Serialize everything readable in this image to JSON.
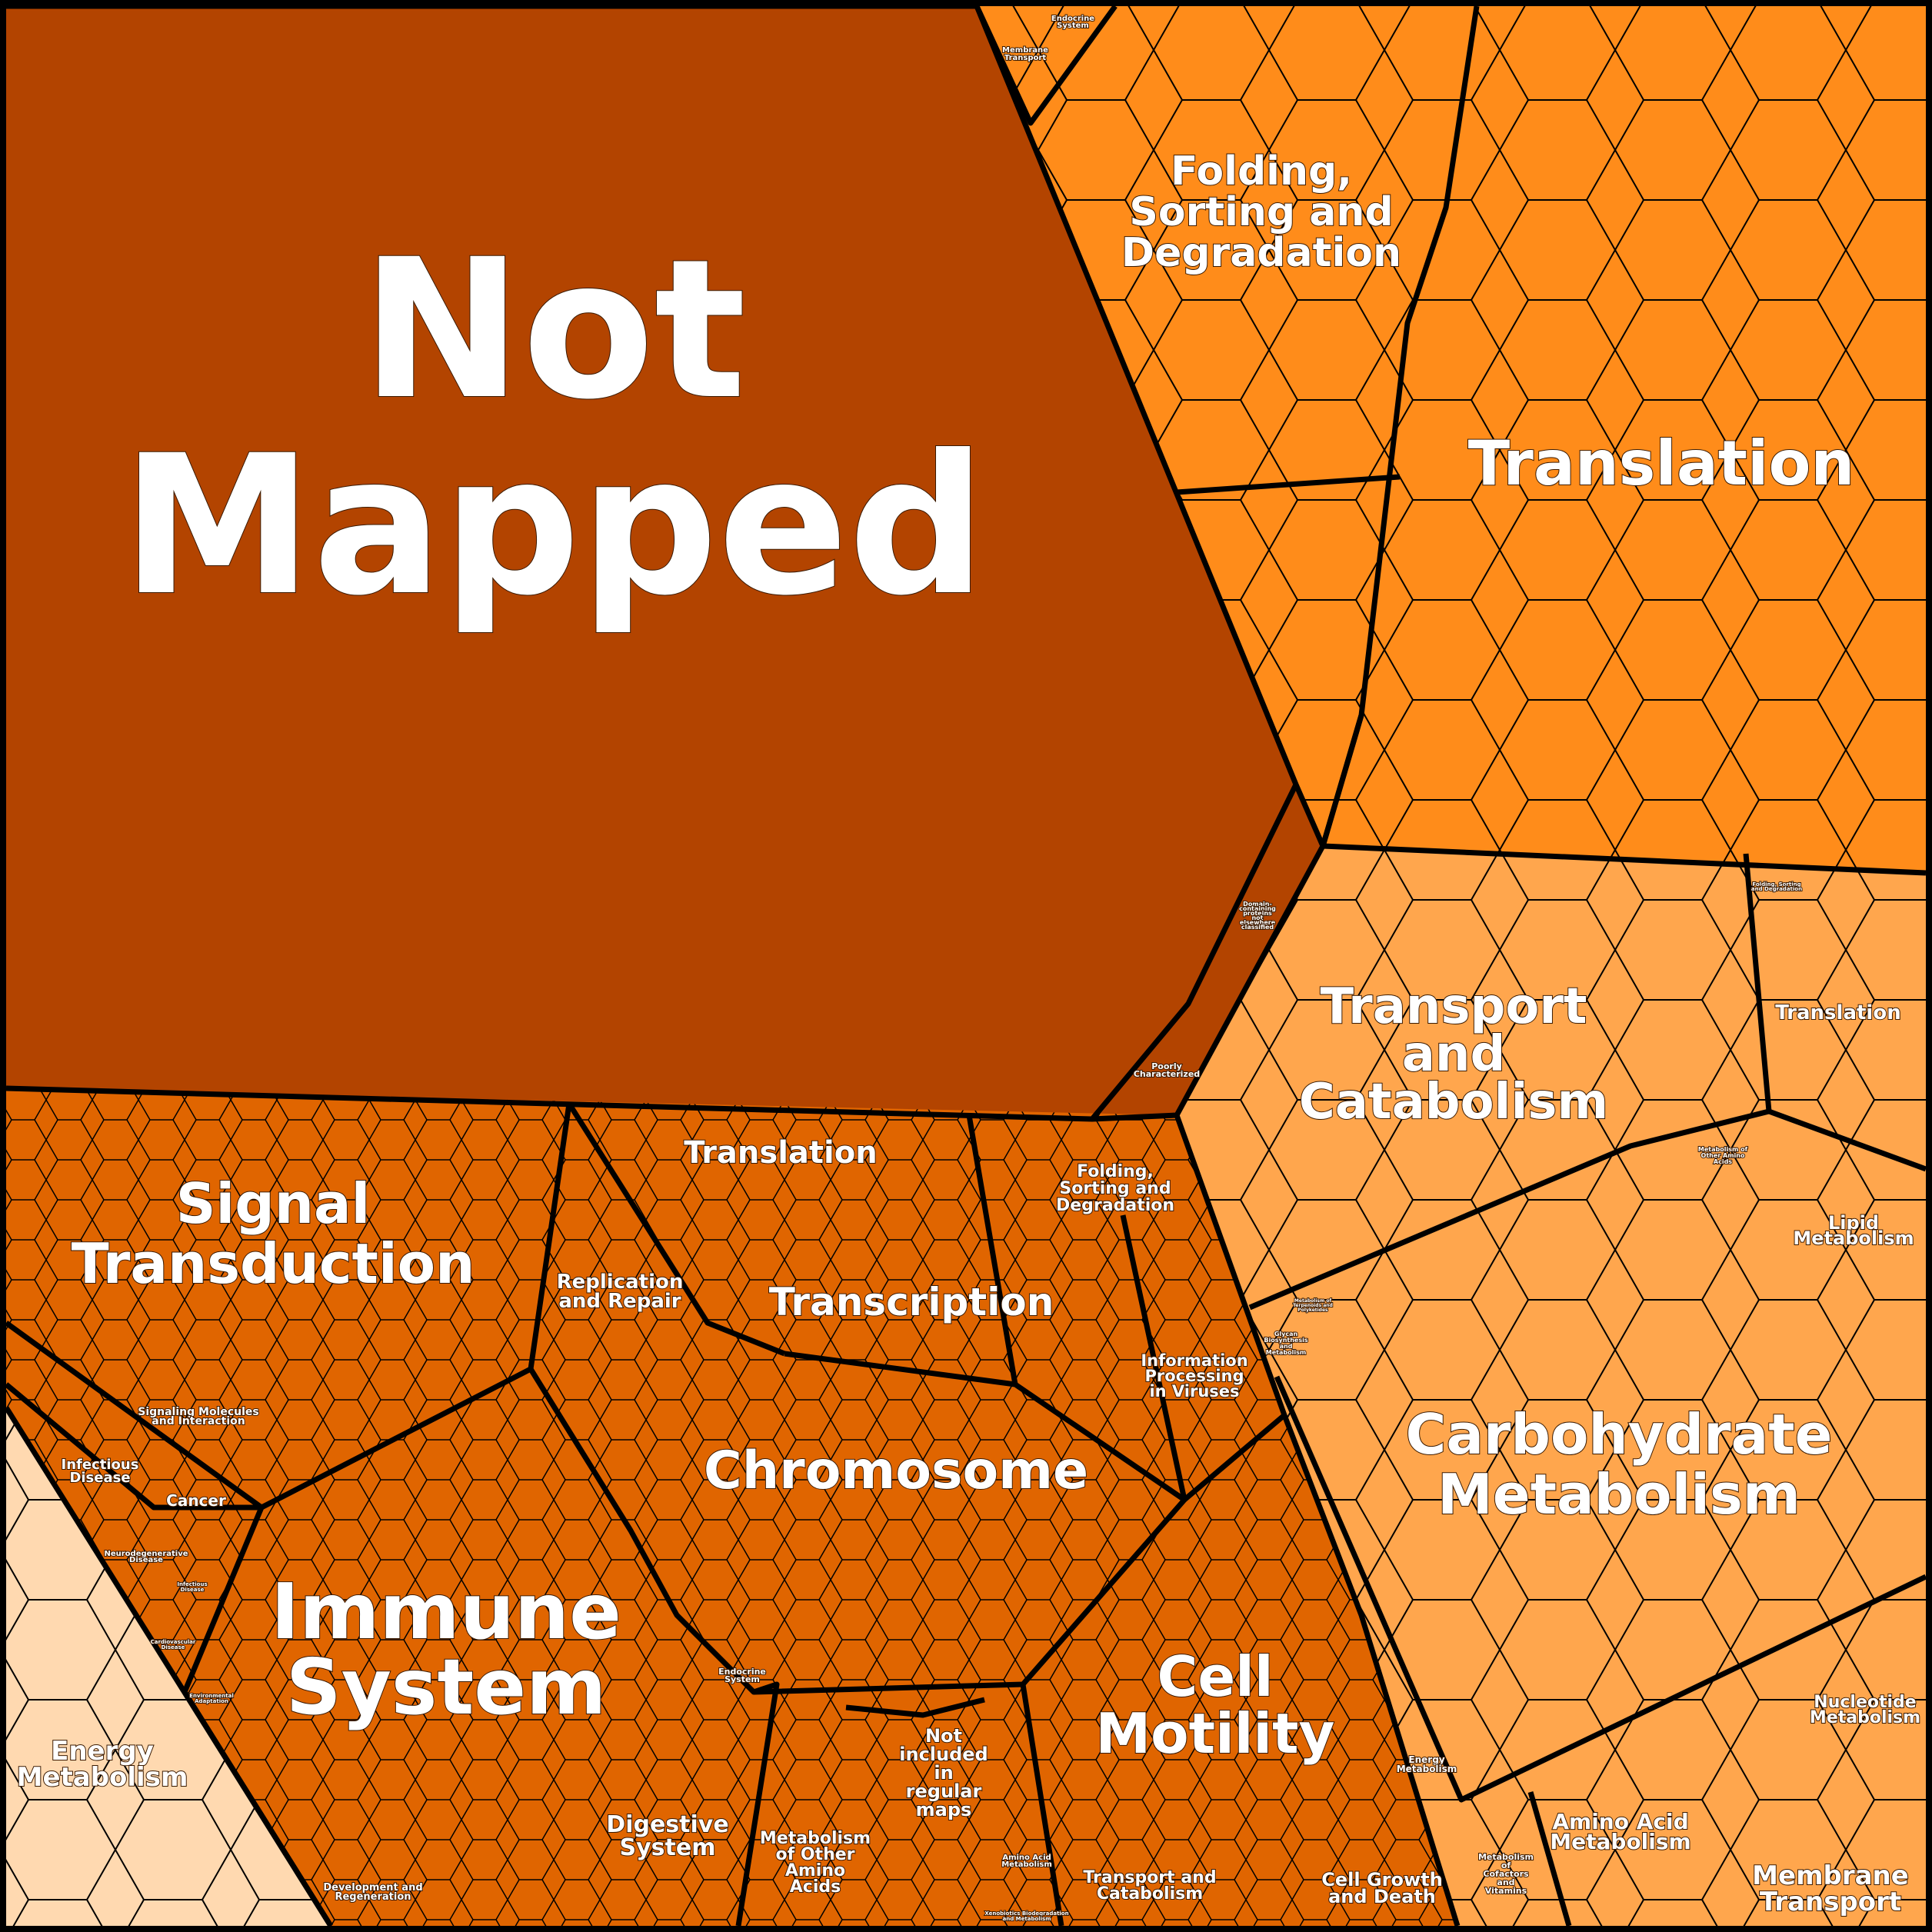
{
  "colors": {
    "not_mapped": "#b34400",
    "genetic_information": "#ff8c1a",
    "organismal_cellular": "#e06500",
    "metabolism": "#ffa64d",
    "energy": "#ffd9b0",
    "border": "#000000",
    "label": "#ffffff"
  },
  "labels": {
    "not_mapped": [
      "Not",
      "Mapped"
    ],
    "folding_top": [
      "Folding,",
      "Sorting and",
      "Degradation"
    ],
    "translation_top": [
      "Translation"
    ],
    "membrane_transport_top": [
      "Membrane",
      "Transport"
    ],
    "endocrine_top": [
      "Endocrine",
      "System"
    ],
    "domain_containing": [
      "Domain-",
      "containing",
      "proteins",
      "not",
      "elsewhere",
      "classified"
    ],
    "poorly_characterized": [
      "Poorly",
      "Characterized"
    ],
    "transport_catabolism_right": [
      "Transport",
      "and",
      "Catabolism"
    ],
    "translation_right": [
      "Translation"
    ],
    "folding_right_small": [
      "Folding, Sorting",
      "and Degradation"
    ],
    "other_amino_right": [
      "Metabolism of",
      "Other Amino",
      "Acids"
    ],
    "lipid": [
      "Lipid",
      "Metabolism"
    ],
    "glycan": [
      "Glycan",
      "Biosynthesis",
      "and",
      "Metabolism"
    ],
    "terpenoids": [
      "Metabolism of",
      "Terpenoids and",
      "Polyketides"
    ],
    "carbohydrate": [
      "Carbohydrate",
      "Metabolism"
    ],
    "nucleotide": [
      "Nucleotide",
      "Metabolism"
    ],
    "membrane_transport_bottom": [
      "Membrane",
      "Transport"
    ],
    "amino_acid_right": [
      "Amino Acid",
      "Metabolism"
    ],
    "energy_right": [
      "Energy",
      "Metabolism"
    ],
    "cofactors": [
      "Metabolism",
      "of",
      "Cofactors",
      "and",
      "Vitamins"
    ],
    "signal_transduction": [
      "Signal",
      "Transduction"
    ],
    "replication": [
      "Replication",
      "and Repair"
    ],
    "translation_mid": [
      "Translation"
    ],
    "folding_mid": [
      "Folding,",
      "Sorting and",
      "Degradation"
    ],
    "transcription": [
      "Transcription"
    ],
    "viruses": [
      "Information",
      "Processing",
      "in Viruses"
    ],
    "chromosome": [
      "Chromosome"
    ],
    "signaling_molecules": [
      "Signaling Molecules",
      "and Interaction"
    ],
    "infectious_1": [
      "Infectious",
      "Disease"
    ],
    "cancer": [
      "Cancer"
    ],
    "neurodegenerative": [
      "Neurodegenerative",
      "Disease"
    ],
    "infectious_2": [
      "Infectious",
      "Disease"
    ],
    "cardiovascular": [
      "Cardiovascular",
      "Disease"
    ],
    "environmental": [
      "Environmental",
      "Adaptation"
    ],
    "immune": [
      "Immune",
      "System"
    ],
    "endocrine_mid": [
      "Endocrine",
      "System"
    ],
    "cell_motility": [
      "Cell",
      "Motility"
    ],
    "not_included": [
      "Not",
      "included",
      "in",
      "regular",
      "maps"
    ],
    "other_amino_mid": [
      "Metabolism",
      "of Other",
      "Amino",
      "Acids"
    ],
    "digestive": [
      "Digestive",
      "System"
    ],
    "amino_acid_mid": [
      "Amino Acid",
      "Metabolism"
    ],
    "transport_catabolism_bottom": [
      "Transport and",
      "Catabolism"
    ],
    "cell_growth": [
      "Cell Growth",
      "and Death"
    ],
    "development": [
      "Development and",
      "Regeneration"
    ],
    "xenobiotics": [
      "Xenobiotics Biodegradation",
      "and Metabolism"
    ],
    "energy_left": [
      "Energy",
      "Metabolism"
    ]
  }
}
